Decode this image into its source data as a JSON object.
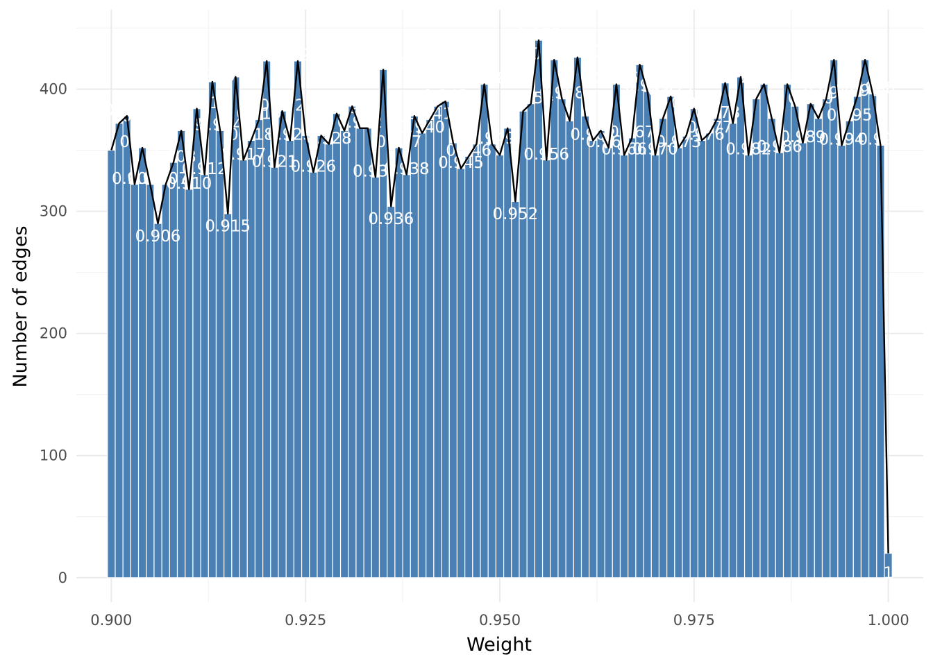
{
  "chart_data": {
    "type": "bar",
    "xlabel": "Weight",
    "ylabel": "Number of edges",
    "xlim": [
      0.8955,
      1.0045
    ],
    "ylim": [
      -20,
      465
    ],
    "x_ticks": [
      0.9,
      0.925,
      0.95,
      0.975,
      1.0
    ],
    "x_tick_labels": [
      "0.900",
      "0.925",
      "0.950",
      "0.975",
      "1.000"
    ],
    "y_ticks": [
      0,
      100,
      200,
      300,
      400
    ],
    "y_tick_labels": [
      "0",
      "100",
      "200",
      "300",
      "400"
    ],
    "grid": true,
    "overlay": "line through bar tops",
    "bar_color": "#4b80b4",
    "line_color": "#000000",
    "series": [
      {
        "x": [
          0.9,
          0.901,
          0.902,
          0.903,
          0.904,
          0.905,
          0.906,
          0.907,
          0.908,
          0.909,
          0.91,
          0.911,
          0.912,
          0.913,
          0.914,
          0.915,
          0.916,
          0.917,
          0.918,
          0.919,
          0.92,
          0.921,
          0.922,
          0.923,
          0.924,
          0.925,
          0.926,
          0.927,
          0.928,
          0.929,
          0.93,
          0.931,
          0.932,
          0.933,
          0.934,
          0.935,
          0.936,
          0.937,
          0.938,
          0.939,
          0.94,
          0.941,
          0.942,
          0.943,
          0.944,
          0.945,
          0.946,
          0.947,
          0.948,
          0.949,
          0.95,
          0.951,
          0.952,
          0.953,
          0.954,
          0.955,
          0.956,
          0.957,
          0.958,
          0.959,
          0.96,
          0.961,
          0.962,
          0.963,
          0.964,
          0.965,
          0.966,
          0.967,
          0.968,
          0.969,
          0.97,
          0.971,
          0.972,
          0.973,
          0.974,
          0.975,
          0.976,
          0.977,
          0.978,
          0.979,
          0.98,
          0.981,
          0.982,
          0.983,
          0.984,
          0.985,
          0.986,
          0.987,
          0.988,
          0.989,
          0.99,
          0.991,
          0.992,
          0.993,
          0.994,
          0.995,
          0.996,
          0.997,
          0.998,
          0.999,
          1.0
        ],
        "values": [
          350,
          372,
          378,
          322,
          352,
          322,
          290,
          322,
          340,
          366,
          318,
          384,
          330,
          406,
          366,
          298,
          410,
          342,
          358,
          375,
          423,
          336,
          382,
          358,
          423,
          362,
          332,
          362,
          355,
          380,
          366,
          386,
          368,
          368,
          328,
          416,
          304,
          352,
          330,
          378,
          364,
          375,
          386,
          390,
          356,
          335,
          345,
          355,
          404,
          355,
          346,
          368,
          308,
          382,
          388,
          440,
          342,
          424,
          392,
          374,
          426,
          378,
          358,
          366,
          352,
          404,
          346,
          360,
          420,
          398,
          346,
          376,
          394,
          352,
          362,
          384,
          358,
          364,
          376,
          405,
          372,
          410,
          346,
          392,
          404,
          376,
          348,
          404,
          386,
          356,
          388,
          376,
          392,
          424,
          354,
          374,
          394,
          424,
          396,
          354,
          20
        ]
      }
    ],
    "data_labels": [
      {
        "x": 0.901,
        "y": 378,
        "text": "0.901"
      },
      {
        "x": 0.902,
        "y": 383,
        "text": "0.902"
      },
      {
        "x": 0.903,
        "y": 327,
        "text": "0.903"
      },
      {
        "x": 0.904,
        "y": 357,
        "text": "0.904"
      },
      {
        "x": 0.905,
        "y": 327,
        "text": "0.905"
      },
      {
        "x": 0.906,
        "y": 280,
        "text": "0.906"
      },
      {
        "x": 0.907,
        "y": 327,
        "text": "0.907"
      },
      {
        "x": 0.908,
        "y": 345,
        "text": "0.908"
      },
      {
        "x": 0.909,
        "y": 371,
        "text": "0.909"
      },
      {
        "x": 0.91,
        "y": 323,
        "text": "0.910"
      },
      {
        "x": 0.911,
        "y": 389,
        "text": "0.911"
      },
      {
        "x": 0.912,
        "y": 335,
        "text": "0.912"
      },
      {
        "x": 0.913,
        "y": 411,
        "text": "0.913"
      },
      {
        "x": 0.914,
        "y": 371,
        "text": "0.914"
      },
      {
        "x": 0.915,
        "y": 288,
        "text": "0.915"
      },
      {
        "x": 0.916,
        "y": 415,
        "text": "0.916"
      },
      {
        "x": 0.917,
        "y": 347,
        "text": "0.917"
      },
      {
        "x": 0.918,
        "y": 363,
        "text": "0.918"
      },
      {
        "x": 0.919,
        "y": 380,
        "text": "0.919"
      },
      {
        "x": 0.92,
        "y": 428,
        "text": "0.920"
      },
      {
        "x": 0.921,
        "y": 341,
        "text": "0.921"
      },
      {
        "x": 0.922,
        "y": 387,
        "text": "0.922"
      },
      {
        "x": 0.923,
        "y": 363,
        "text": "0.923"
      },
      {
        "x": 0.924,
        "y": 428,
        "text": "0.924"
      },
      {
        "x": 0.926,
        "y": 337,
        "text": "0.926"
      },
      {
        "x": 0.928,
        "y": 360,
        "text": "0.928"
      },
      {
        "x": 0.929,
        "y": 385,
        "text": "0.929"
      },
      {
        "x": 0.931,
        "y": 391,
        "text": "0.931"
      },
      {
        "x": 0.932,
        "y": 373,
        "text": "0.932"
      },
      {
        "x": 0.934,
        "y": 333,
        "text": "0.934"
      },
      {
        "x": 0.935,
        "y": 421,
        "text": "0.935"
      },
      {
        "x": 0.936,
        "y": 294,
        "text": "0.936"
      },
      {
        "x": 0.937,
        "y": 357,
        "text": "0.937"
      },
      {
        "x": 0.938,
        "y": 335,
        "text": "0.938"
      },
      {
        "x": 0.94,
        "y": 369,
        "text": "0.940"
      },
      {
        "x": 0.941,
        "y": 380,
        "text": "0.941"
      },
      {
        "x": 0.943,
        "y": 395,
        "text": "0.943"
      },
      {
        "x": 0.945,
        "y": 340,
        "text": "0.945"
      },
      {
        "x": 0.946,
        "y": 350,
        "text": "0.946"
      },
      {
        "x": 0.948,
        "y": 409,
        "text": "0.948"
      },
      {
        "x": 0.949,
        "y": 360,
        "text": "0.949"
      },
      {
        "x": 0.952,
        "y": 298,
        "text": "0.952"
      },
      {
        "x": 0.954,
        "y": 393,
        "text": "0.954"
      },
      {
        "x": 0.955,
        "y": 445,
        "text": "0.955"
      },
      {
        "x": 0.956,
        "y": 347,
        "text": "0.956"
      },
      {
        "x": 0.957,
        "y": 429,
        "text": "0.957"
      },
      {
        "x": 0.958,
        "y": 397,
        "text": "0.958"
      },
      {
        "x": 0.96,
        "y": 431,
        "text": "0.960"
      },
      {
        "x": 0.962,
        "y": 363,
        "text": "0.962"
      },
      {
        "x": 0.964,
        "y": 357,
        "text": "0.964"
      },
      {
        "x": 0.965,
        "y": 409,
        "text": "0.965"
      },
      {
        "x": 0.966,
        "y": 351,
        "text": "0.966"
      },
      {
        "x": 0.967,
        "y": 365,
        "text": "0.967"
      },
      {
        "x": 0.968,
        "y": 425,
        "text": "0.968"
      },
      {
        "x": 0.969,
        "y": 403,
        "text": "0.969"
      },
      {
        "x": 0.97,
        "y": 351,
        "text": "0.970"
      },
      {
        "x": 0.972,
        "y": 399,
        "text": "0.972"
      },
      {
        "x": 0.973,
        "y": 357,
        "text": "0.973"
      },
      {
        "x": 0.975,
        "y": 389,
        "text": "0.975"
      },
      {
        "x": 0.976,
        "y": 363,
        "text": "0.976"
      },
      {
        "x": 0.977,
        "y": 369,
        "text": "0.977"
      },
      {
        "x": 0.978,
        "y": 381,
        "text": "0.978"
      },
      {
        "x": 0.979,
        "y": 410,
        "text": "0.979"
      },
      {
        "x": 0.981,
        "y": 415,
        "text": "0.981"
      },
      {
        "x": 0.982,
        "y": 351,
        "text": "0.982"
      },
      {
        "x": 0.984,
        "y": 409,
        "text": "0.984"
      },
      {
        "x": 0.986,
        "y": 353,
        "text": "0.986"
      },
      {
        "x": 0.987,
        "y": 409,
        "text": "0.987"
      },
      {
        "x": 0.989,
        "y": 361,
        "text": "0.989"
      },
      {
        "x": 0.99,
        "y": 393,
        "text": "0.990"
      },
      {
        "x": 0.992,
        "y": 397,
        "text": "0.992"
      },
      {
        "x": 0.993,
        "y": 429,
        "text": "0.993"
      },
      {
        "x": 0.994,
        "y": 359,
        "text": "0.994"
      },
      {
        "x": 0.995,
        "y": 379,
        "text": "0.995"
      },
      {
        "x": 0.996,
        "y": 399,
        "text": "0.996"
      },
      {
        "x": 0.997,
        "y": 429,
        "text": "0.997"
      },
      {
        "x": 0.998,
        "y": 401,
        "text": "0.998"
      },
      {
        "x": 0.999,
        "y": 359,
        "text": "0.999"
      },
      {
        "x": 1.0,
        "y": 4,
        "text": "1"
      }
    ]
  }
}
